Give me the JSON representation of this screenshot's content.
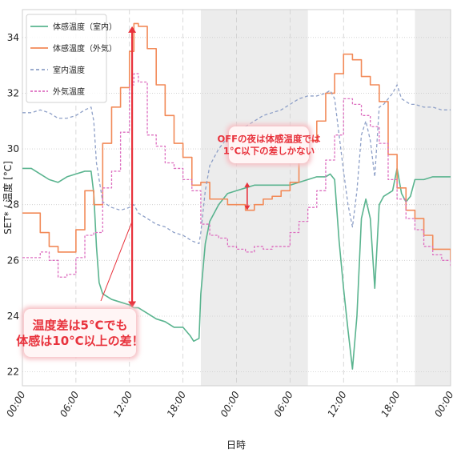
{
  "chart_data": {
    "type": "line",
    "xlabel": "日時",
    "ylabel": "SET* / 温度 [°C]",
    "ylim": [
      21.5,
      35
    ],
    "xlim": [
      0,
      48
    ],
    "yticks": [
      22,
      24,
      26,
      28,
      30,
      32,
      34
    ],
    "xticks": [
      {
        "h": 0,
        "label": "00:00"
      },
      {
        "h": 6,
        "label": "06:00"
      },
      {
        "h": 12,
        "label": "12:00"
      },
      {
        "h": 18,
        "label": "18:00"
      },
      {
        "h": 24,
        "label": "00:00"
      },
      {
        "h": 30,
        "label": "06:00"
      },
      {
        "h": 36,
        "label": "12:00"
      },
      {
        "h": 42,
        "label": "18:00"
      },
      {
        "h": 48,
        "label": "00:00"
      }
    ],
    "grid": true,
    "legend_position": "top-left",
    "shaded_periods": [
      [
        20,
        32
      ],
      [
        44,
        48
      ]
    ],
    "series": [
      {
        "name": "体感温度（室内）",
        "color": "#5ab48f",
        "dash": "",
        "x": [
          0,
          1,
          2,
          3,
          4,
          5,
          6,
          7,
          7.7,
          8,
          8.3,
          8.6,
          9,
          10,
          11,
          12,
          12.5,
          13,
          14,
          15,
          16,
          17,
          18,
          18.8,
          19.2,
          19.8,
          20,
          20.5,
          21,
          22,
          23,
          24,
          25,
          26,
          27,
          28,
          29,
          30,
          31,
          32,
          33,
          34,
          34.5,
          35,
          35.5,
          36,
          36.5,
          37,
          37.5,
          38,
          38.5,
          39,
          39.5,
          40,
          40.5,
          41,
          41.5,
          42,
          42.5,
          43,
          43.5,
          44,
          45,
          46,
          47,
          48
        ],
        "values": [
          29.3,
          29.3,
          29.1,
          28.9,
          28.8,
          29.0,
          29.1,
          29.2,
          29.2,
          28.4,
          26.5,
          25.2,
          24.8,
          24.6,
          24.5,
          24.4,
          24.3,
          24.3,
          24.1,
          23.9,
          23.8,
          23.6,
          23.6,
          23.3,
          23.1,
          23.2,
          24.8,
          26.6,
          27.4,
          28.0,
          28.4,
          28.5,
          28.6,
          28.7,
          28.7,
          28.7,
          28.7,
          28.7,
          28.8,
          28.9,
          29.0,
          29.0,
          29.1,
          28.9,
          26.7,
          25.0,
          23.5,
          22.1,
          24.0,
          27.5,
          28.2,
          27.5,
          25.0,
          28.0,
          28.3,
          28.4,
          28.5,
          29.3,
          28.4,
          28.1,
          28.3,
          28.9,
          28.9,
          29.0,
          29.0,
          29.0
        ]
      },
      {
        "name": "体感温度（外気）",
        "color": "#f28a58",
        "dash": "",
        "x": [
          0,
          1,
          2,
          3,
          4,
          5,
          6,
          7,
          8,
          9,
          10,
          11,
          12,
          12.5,
          13,
          14,
          15,
          16,
          17,
          18,
          19,
          20,
          21,
          22,
          23,
          24,
          25,
          26,
          27,
          28,
          29,
          30,
          31,
          32,
          33,
          34,
          35,
          36,
          37,
          38,
          39,
          40,
          41,
          42,
          43,
          44,
          45,
          46,
          47,
          48
        ],
        "values": [
          27.7,
          27.7,
          27.0,
          26.5,
          26.3,
          26.3,
          27.1,
          28.5,
          28.0,
          30.2,
          31.5,
          32.2,
          33.5,
          34.5,
          34.4,
          33.6,
          32.3,
          31.2,
          30.2,
          29.7,
          28.7,
          28.8,
          28.2,
          28.2,
          28.0,
          28.0,
          27.8,
          28.0,
          28.2,
          28.3,
          28.5,
          28.8,
          29.6,
          30.3,
          31.0,
          32.0,
          32.7,
          33.4,
          33.2,
          32.6,
          32.3,
          31.7,
          29.8,
          28.6,
          27.8,
          27.5,
          26.9,
          26.4,
          26.4,
          26.0
        ]
      },
      {
        "name": "室内温度",
        "color": "#8ea0c8",
        "dash": "4,3",
        "x": [
          0,
          1,
          2,
          3,
          4,
          5,
          6,
          7,
          7.7,
          8,
          8.3,
          9,
          10,
          11,
          12,
          12.5,
          13,
          14,
          15,
          16,
          17,
          18,
          19,
          19.8,
          20,
          20.5,
          21,
          22,
          23,
          24,
          25,
          26,
          27,
          28,
          29,
          30,
          31,
          32,
          33,
          34,
          34.5,
          35,
          35.5,
          36,
          36.5,
          37,
          37.5,
          38,
          38.5,
          39,
          39.5,
          40,
          40.5,
          41,
          41.5,
          42,
          42.5,
          43,
          43.5,
          44,
          45,
          46,
          47,
          48
        ],
        "values": [
          31.3,
          31.3,
          31.4,
          31.3,
          31.1,
          31.1,
          31.2,
          31.4,
          31.5,
          31.0,
          29.5,
          28.1,
          27.9,
          27.8,
          27.9,
          28.0,
          27.7,
          27.5,
          27.3,
          27.2,
          27.0,
          26.9,
          26.7,
          26.6,
          27.0,
          28.5,
          29.4,
          30.0,
          30.4,
          30.6,
          30.8,
          31.0,
          31.2,
          31.3,
          31.4,
          31.6,
          31.8,
          31.9,
          31.9,
          32.0,
          32.1,
          31.8,
          30.5,
          29.2,
          28.0,
          27.2,
          28.5,
          30.5,
          31.0,
          30.3,
          29.0,
          31.5,
          31.6,
          31.8,
          32.0,
          32.3,
          31.8,
          31.7,
          31.6,
          31.6,
          31.5,
          31.5,
          31.4,
          31.4
        ]
      },
      {
        "name": "外気温度",
        "color": "#dd6fc0",
        "dash": "3,2",
        "x": [
          0,
          1,
          2,
          3,
          4,
          5,
          6,
          7,
          8,
          9,
          10,
          11,
          12,
          12.5,
          13,
          14,
          15,
          16,
          17,
          18,
          19,
          20,
          21,
          22,
          23,
          24,
          25,
          26,
          27,
          28,
          29,
          30,
          31,
          32,
          33,
          34,
          35,
          36,
          37,
          38,
          39,
          40,
          41,
          42,
          43,
          44,
          45,
          46,
          47,
          48
        ],
        "values": [
          26.1,
          26.1,
          26.3,
          26.0,
          25.4,
          25.5,
          26.1,
          26.9,
          27.0,
          28.6,
          29.2,
          30.6,
          32.3,
          32.7,
          32.4,
          30.5,
          30.1,
          29.5,
          29.3,
          28.9,
          28.5,
          27.3,
          26.9,
          26.8,
          26.5,
          26.4,
          26.3,
          26.5,
          26.4,
          26.5,
          26.5,
          27.0,
          27.4,
          27.9,
          28.5,
          29.6,
          30.5,
          31.8,
          31.6,
          31.2,
          30.8,
          30.2,
          28.9,
          28.2,
          27.5,
          27.1,
          26.5,
          26.2,
          26.0,
          25.8
        ]
      }
    ],
    "annotations": [
      {
        "id": "big",
        "lines": [
          "温度差は5°Cでも",
          "体感は10°C以上の差！"
        ],
        "h": 12.3,
        "from": 24.3,
        "to": 34.4
      },
      {
        "id": "small",
        "lines": [
          "OFFの夜は体感温度では",
          "1°C以下の差しかない"
        ],
        "h": 25.2,
        "from": 27.8,
        "to": 28.8
      }
    ]
  }
}
